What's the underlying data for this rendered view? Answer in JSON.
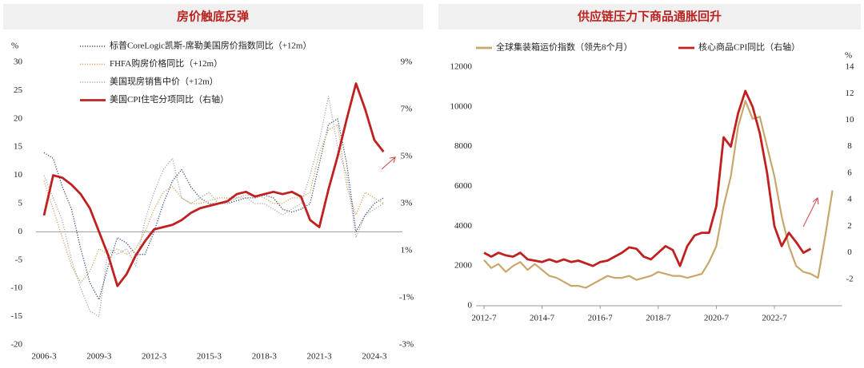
{
  "chart_data": [
    {
      "type": "line",
      "title": "房价触底反弹",
      "y_label": "%",
      "categories": [
        "2006-3",
        null,
        null,
        null,
        null,
        null,
        "2009-3",
        null,
        null,
        null,
        null,
        null,
        "2012-3",
        null,
        null,
        null,
        null,
        null,
        "2015-3",
        null,
        null,
        null,
        null,
        null,
        "2018-3",
        null,
        null,
        null,
        null,
        null,
        "2021-3",
        null,
        null,
        null,
        null,
        null,
        "2024-3",
        null,
        null
      ],
      "ylim": [
        -20,
        30
      ],
      "yticks": [
        -20,
        -15,
        -10,
        -5,
        0,
        5,
        10,
        15,
        20,
        25,
        30
      ],
      "y2lim": [
        -3,
        9
      ],
      "y2ticks": [
        {
          "value": -3,
          "label": "-3%"
        },
        {
          "value": -1,
          "label": "-1%"
        },
        {
          "value": 1,
          "label": "1%"
        },
        {
          "value": 3,
          "label": "3%"
        },
        {
          "value": 5,
          "label": "5%"
        },
        {
          "value": 7,
          "label": "7%"
        },
        {
          "value": 9,
          "label": "9%"
        }
      ],
      "grid": false,
      "legend": "upper left",
      "series": [
        {
          "name": "标普CoreLogic凯斯-席勒美国房价指数同比（+12m）",
          "color": "#34497f",
          "style": "dotted",
          "axis": "y",
          "values": [
            14,
            13,
            8,
            4,
            -3,
            -9,
            -12,
            -6,
            -1,
            -2,
            -4,
            -4,
            0,
            5,
            9,
            11,
            8,
            6,
            5,
            5,
            5,
            5.5,
            6,
            6,
            6.5,
            6,
            4,
            3.5,
            4,
            5,
            12,
            19,
            20,
            12,
            0,
            3,
            5,
            6,
            null
          ]
        },
        {
          "name": "FHFA购房价格同比（+12m）",
          "color": "#d2a455",
          "style": "dotted",
          "axis": "y",
          "values": [
            9,
            4,
            -1,
            -6,
            -9,
            -7,
            -3,
            -4,
            -3,
            -4,
            -3,
            0,
            4,
            7,
            8,
            6,
            5,
            5,
            5.5,
            6,
            6,
            6,
            6.5,
            6.5,
            6,
            5,
            5,
            6,
            6,
            7,
            14,
            18,
            19,
            8,
            3,
            7,
            6,
            5,
            null
          ]
        },
        {
          "name": "美国现房销售中价（+12m）",
          "color": "#a8a8a8",
          "style": "dotted",
          "axis": "y",
          "values": [
            10,
            6,
            2,
            -5,
            -10,
            -14,
            -15,
            -3,
            -4,
            -3,
            -6,
            2,
            7,
            11,
            13,
            6,
            5,
            6,
            7,
            5,
            5,
            6,
            6,
            5,
            5,
            4,
            3,
            4,
            5,
            10,
            16,
            24,
            15,
            10,
            -1,
            3,
            4,
            5,
            null
          ]
        },
        {
          "name": "美国CPI住宅分项同比（右轴）",
          "color": "#c0201f",
          "style": "solid",
          "axis": "y2",
          "values": [
            2.5,
            4.2,
            4.1,
            3.8,
            3.4,
            2.8,
            1.8,
            0.8,
            -0.5,
            0.0,
            0.8,
            1.4,
            1.9,
            2.0,
            2.1,
            2.3,
            2.6,
            2.8,
            2.9,
            3.0,
            3.1,
            3.4,
            3.5,
            3.3,
            3.4,
            3.5,
            3.4,
            3.5,
            3.3,
            2.3,
            2.0,
            3.6,
            5.0,
            6.6,
            8.1,
            7.0,
            5.7,
            5.2,
            null
          ]
        }
      ]
    },
    {
      "type": "line",
      "title": "供应链压力下商品通胀回升",
      "y2_label": "%",
      "categories": [
        "2012-7",
        null,
        null,
        null,
        null,
        null,
        null,
        null,
        "2014-7",
        null,
        null,
        null,
        null,
        null,
        null,
        null,
        "2016-7",
        null,
        null,
        null,
        null,
        null,
        null,
        null,
        "2018-7",
        null,
        null,
        null,
        null,
        null,
        null,
        null,
        "2020-7",
        null,
        null,
        null,
        null,
        null,
        null,
        null,
        "2022-7",
        null,
        null,
        null,
        null,
        null,
        null,
        null,
        null
      ],
      "ylim": [
        0,
        12000
      ],
      "yticks": [
        0,
        2000,
        4000,
        6000,
        8000,
        10000,
        12000
      ],
      "y2lim": [
        -4,
        14
      ],
      "y2ticks": [
        -2,
        0,
        2,
        4,
        6,
        8,
        10,
        12,
        14
      ],
      "grid": false,
      "legend": "top",
      "series": [
        {
          "name": "全球集装箱运价指数（领先8个月）",
          "color": "#c9a76b",
          "style": "solid",
          "axis": "y",
          "values": [
            2300,
            1900,
            2100,
            1700,
            2000,
            2200,
            1800,
            2100,
            1800,
            1500,
            1400,
            1200,
            1000,
            1000,
            900,
            1100,
            1300,
            1500,
            1400,
            1400,
            1500,
            1300,
            1400,
            1500,
            1700,
            1600,
            1500,
            1500,
            1400,
            1500,
            1600,
            2200,
            3000,
            5000,
            6500,
            9000,
            10300,
            9400,
            9500,
            8000,
            6500,
            4500,
            3000,
            2000,
            1700,
            1600,
            1400,
            3500,
            5800
          ]
        },
        {
          "name": "核心商品CPI同比（右轴）",
          "color": "#c0201f",
          "style": "solid",
          "axis": "y2",
          "values": [
            0,
            -0.3,
            0,
            -0.2,
            -0.3,
            0,
            -0.5,
            -0.6,
            -0.7,
            -0.5,
            -0.7,
            -0.5,
            -0.7,
            -0.6,
            -0.8,
            -1.0,
            -0.7,
            -0.6,
            -0.3,
            0,
            0.4,
            0.3,
            -0.3,
            -0.5,
            0,
            0.5,
            0.2,
            -1.0,
            0.5,
            1.3,
            1.5,
            1.5,
            3.5,
            8.7,
            8.0,
            10.5,
            12.2,
            11,
            9,
            6,
            2,
            0.5,
            1.5,
            0.8,
            0,
            0.3,
            null,
            null,
            null
          ]
        }
      ]
    }
  ]
}
